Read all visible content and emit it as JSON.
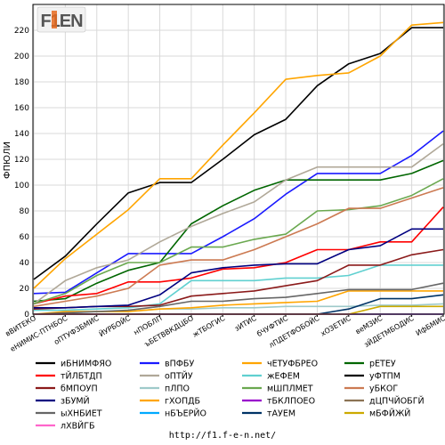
{
  "chart_data": {
    "type": "line",
    "ylabel": "ФПЮЛИ",
    "ylim": [
      0,
      240
    ],
    "yticks": [
      0,
      20,
      40,
      60,
      80,
      100,
      120,
      140,
      160,
      180,
      200,
      220
    ],
    "grid": true,
    "legend_position": "bottom",
    "categories": [
      "вВИТЕКО",
      "еНИМИС-ПТНБОС",
      "оПТУФЗБМИС",
      "ЙУРБОЙС",
      "нПОБЛП",
      "ъБЕТВВКДЦБО",
      "жТБОГИС",
      "зИТИС",
      "бЧУФТИС",
      "лПДЕТФОБОЙС",
      "хОЗЕТИС",
      "веМЗИС",
      "зЙДЕТМБОДИС",
      "ИфБМИС"
    ],
    "series": [
      {
        "name": "иБНИМФЯО",
        "color": "#000000",
        "values": [
          27,
          45,
          70,
          94,
          102,
          102,
          120,
          139,
          151,
          177,
          194,
          202,
          222,
          222
        ]
      },
      {
        "name": "вПФБУ",
        "color": "#1a1aff",
        "values": [
          16,
          17,
          32,
          47,
          47,
          47,
          60,
          74,
          93,
          109,
          109,
          109,
          123,
          142
        ]
      },
      {
        "name": "чЕТУФБРЕО",
        "color": "#ffa500",
        "values": [
          20,
          43,
          62,
          81,
          105,
          105,
          131,
          156,
          182,
          185,
          187,
          200,
          224,
          226
        ]
      },
      {
        "name": "рЕТЕУ",
        "color": "#006600",
        "values": [
          10,
          12,
          24,
          34,
          40,
          70,
          84,
          96,
          104,
          104,
          104,
          104,
          109,
          119
        ]
      },
      {
        "name": "тЙЛБТДП",
        "color": "#ff0000",
        "values": [
          8,
          14,
          16,
          25,
          25,
          28,
          35,
          36,
          40,
          50,
          50,
          56,
          56,
          83
        ]
      },
      {
        "name": "оПТЙУ",
        "color": "#b0a898",
        "values": [
          8,
          26,
          36,
          42,
          56,
          68,
          78,
          87,
          104,
          114,
          114,
          114,
          114,
          132
        ]
      },
      {
        "name": "жЕФЕМ",
        "color": "#60d0d0",
        "values": [
          3,
          3,
          4,
          5,
          8,
          26,
          26,
          26,
          28,
          28,
          30,
          38,
          38,
          38
        ]
      },
      {
        "name": "уФТПМ",
        "color": "#000000",
        "values": [
          0,
          0,
          0,
          0,
          0,
          0,
          0,
          0,
          0,
          0,
          0,
          0,
          0,
          0
        ]
      },
      {
        "name": "бМПОУП",
        "color": "#8b1a1a",
        "values": [
          4,
          5,
          6,
          6,
          7,
          14,
          16,
          18,
          22,
          26,
          38,
          38,
          46,
          50
        ]
      },
      {
        "name": "пЛПО",
        "color": "#9ecaca",
        "values": [
          0,
          1,
          2,
          2,
          4,
          4,
          5,
          5,
          6,
          6,
          6,
          7,
          7,
          8
        ]
      },
      {
        "name": "мШПЛМЕТ",
        "color": "#6aa84f",
        "values": [
          8,
          16,
          30,
          40,
          40,
          52,
          52,
          58,
          62,
          80,
          81,
          84,
          92,
          105
        ]
      },
      {
        "name": "уБКОГ",
        "color": "#cc7a52",
        "values": [
          6,
          10,
          14,
          20,
          38,
          42,
          42,
          50,
          60,
          70,
          82,
          82,
          90,
          98
        ]
      },
      {
        "name": "зБУМЙ",
        "color": "#000080",
        "values": [
          5,
          5,
          6,
          7,
          15,
          32,
          36,
          38,
          39,
          39,
          50,
          53,
          66,
          66
        ]
      },
      {
        "name": "гХОПДБ",
        "color": "#ffa500",
        "values": [
          0,
          2,
          2,
          2,
          4,
          5,
          7,
          8,
          9,
          10,
          18,
          18,
          18,
          18
        ]
      },
      {
        "name": "тБКЛПОЕО",
        "color": "#9900cc",
        "values": [
          0,
          0,
          0,
          0,
          0,
          0,
          0,
          0,
          0,
          0,
          0,
          0,
          0,
          0
        ]
      },
      {
        "name": "дЦПЧЙОБГЙ",
        "color": "#8b7355",
        "values": [
          0,
          0,
          0,
          0,
          0,
          0,
          0,
          0,
          0,
          0,
          0,
          0,
          0,
          0
        ]
      },
      {
        "name": "ыХНБИЕТ",
        "color": "#666666",
        "values": [
          0,
          1,
          2,
          3,
          6,
          10,
          10,
          12,
          13,
          16,
          19,
          19,
          19,
          24
        ]
      },
      {
        "name": "нБЪЕРЙО",
        "color": "#00aaff",
        "values": [
          0,
          0,
          0,
          0,
          0,
          0,
          0,
          0,
          0,
          0,
          0,
          0,
          0,
          0
        ]
      },
      {
        "name": "тАУЕМ",
        "color": "#003366",
        "values": [
          0,
          0,
          0,
          0,
          0,
          0,
          0,
          0,
          0,
          0,
          4,
          12,
          12,
          15
        ]
      },
      {
        "name": "мБФЙЖЙ",
        "color": "#ccaa00",
        "values": [
          0,
          0,
          0,
          0,
          0,
          0,
          0,
          0,
          0,
          0,
          0,
          6,
          6,
          6
        ]
      },
      {
        "name": "лХВЙГБ",
        "color": "#ff66cc",
        "values": [
          0,
          0,
          0,
          0,
          0,
          0,
          0,
          0,
          0,
          0,
          0,
          0,
          0,
          0
        ]
      }
    ]
  },
  "logo": {
    "text": "F1EN"
  },
  "footer": {
    "url": "http://f1.f-e-n.net/"
  }
}
